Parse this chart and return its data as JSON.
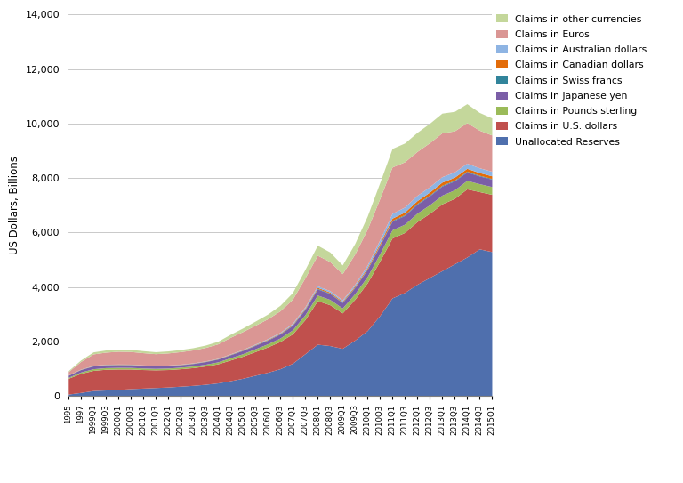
{
  "title": "",
  "ylabel": "US Dollars, Billions",
  "xlabel": "",
  "ylim": [
    0,
    14000
  ],
  "yticks": [
    0,
    2000,
    4000,
    6000,
    8000,
    10000,
    12000,
    14000
  ],
  "series_labels": [
    "Unallocated Reserves",
    "Claims in U.S. dollars",
    "Claims in Pounds sterling",
    "Claims in Japanese yen",
    "Claims in Swiss francs",
    "Claims in Canadian dollars",
    "Claims in Australian dollars",
    "Claims in Euros",
    "Claims in other currencies"
  ],
  "colors": [
    "#4F6FAD",
    "#C0504D",
    "#9BBB59",
    "#7B5EA7",
    "#31849B",
    "#E36C09",
    "#8EB4E3",
    "#DA9694",
    "#C4D79B"
  ],
  "quarters": [
    "1995",
    "1997",
    "1999Q1",
    "1999Q3",
    "2000Q1",
    "2000Q3",
    "2001Q1",
    "2001Q3",
    "2002Q1",
    "2002Q3",
    "2003Q1",
    "2003Q3",
    "2004Q1",
    "2004Q3",
    "2005Q1",
    "2005Q3",
    "2006Q1",
    "2006Q3",
    "2007Q1",
    "2007Q3",
    "2008Q1",
    "2008Q3",
    "2009Q1",
    "2009Q3",
    "2010Q1",
    "2010Q3",
    "2011Q1",
    "2011Q3",
    "2012Q1",
    "2012Q3",
    "2013Q1",
    "2013Q3",
    "2014Q1",
    "2014Q3",
    "2015Q1"
  ],
  "unallocated": [
    70,
    130,
    200,
    220,
    240,
    270,
    290,
    310,
    330,
    360,
    390,
    430,
    480,
    560,
    650,
    760,
    870,
    1000,
    1200,
    1550,
    1900,
    1850,
    1750,
    2050,
    2400,
    2950,
    3600,
    3800,
    4100,
    4350,
    4600,
    4850,
    5100,
    5400,
    5300
  ],
  "usd": [
    580,
    700,
    740,
    760,
    750,
    720,
    680,
    650,
    640,
    640,
    650,
    670,
    700,
    760,
    810,
    870,
    930,
    1000,
    1080,
    1250,
    1600,
    1500,
    1300,
    1500,
    1750,
    2000,
    2200,
    2200,
    2300,
    2350,
    2450,
    2400,
    2500,
    2100,
    2100
  ],
  "gbp": [
    35,
    50,
    60,
    60,
    60,
    58,
    56,
    54,
    55,
    57,
    60,
    65,
    72,
    82,
    92,
    103,
    115,
    128,
    148,
    178,
    205,
    195,
    180,
    205,
    235,
    270,
    300,
    305,
    310,
    315,
    320,
    315,
    310,
    290,
    285
  ],
  "jpy": [
    75,
    90,
    100,
    100,
    98,
    96,
    92,
    88,
    87,
    87,
    90,
    95,
    102,
    110,
    118,
    126,
    134,
    145,
    165,
    195,
    225,
    215,
    200,
    225,
    255,
    290,
    315,
    320,
    325,
    328,
    335,
    325,
    310,
    285,
    275
  ],
  "chf": [
    5,
    6,
    8,
    8,
    8,
    8,
    7,
    7,
    7,
    7,
    8,
    8,
    8,
    9,
    10,
    11,
    12,
    13,
    15,
    18,
    20,
    19,
    17,
    19,
    22,
    25,
    28,
    28,
    28,
    28,
    28,
    27,
    26,
    24,
    23
  ],
  "cad": [
    5,
    6,
    8,
    8,
    8,
    8,
    7,
    7,
    8,
    8,
    8,
    9,
    10,
    12,
    14,
    16,
    18,
    21,
    25,
    30,
    38,
    36,
    33,
    40,
    50,
    65,
    85,
    95,
    105,
    110,
    115,
    112,
    108,
    100,
    96
  ],
  "aud": [
    5,
    6,
    8,
    8,
    8,
    8,
    7,
    7,
    8,
    9,
    9,
    10,
    11,
    13,
    16,
    20,
    24,
    29,
    36,
    48,
    58,
    55,
    50,
    62,
    90,
    130,
    175,
    185,
    195,
    198,
    200,
    195,
    188,
    175,
    168
  ],
  "eur": [
    120,
    280,
    420,
    445,
    470,
    465,
    450,
    430,
    445,
    460,
    475,
    495,
    530,
    605,
    655,
    690,
    730,
    790,
    885,
    1065,
    1120,
    1065,
    960,
    1110,
    1315,
    1510,
    1700,
    1660,
    1610,
    1615,
    1610,
    1505,
    1490,
    1380,
    1330
  ],
  "other": [
    35,
    55,
    75,
    80,
    80,
    78,
    75,
    72,
    75,
    78,
    82,
    87,
    95,
    112,
    130,
    150,
    172,
    202,
    242,
    308,
    368,
    350,
    320,
    385,
    480,
    580,
    680,
    690,
    700,
    712,
    722,
    714,
    695,
    652,
    628
  ]
}
